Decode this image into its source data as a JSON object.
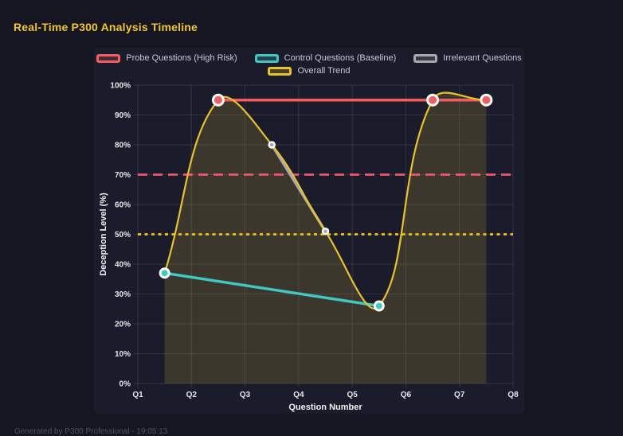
{
  "window": {
    "title": "Real-Time P300 Analysis Timeline",
    "footer": "Generated by P300 Professional - 19:05:13"
  },
  "colors": {
    "page_bg": "#151622",
    "card_bg": "#1b1c2b",
    "title": "#f1c72d",
    "grid": "rgba(255,255,255,0.10)",
    "tick_text": "#e6e6ea",
    "axis_title_text": "#f0f0f4",
    "legend_text": "#c6c8d0",
    "point_border": "#ffffff"
  },
  "chart_data": {
    "type": "line",
    "title": "Real-Time P300 Analysis Timeline",
    "xlabel": "Question Number",
    "ylabel": "Deception Level (%)",
    "x_ticks": [
      "Q1",
      "Q2",
      "Q3",
      "Q4",
      "Q5",
      "Q6",
      "Q7",
      "Q8"
    ],
    "x_range": [
      1,
      8
    ],
    "ylim": [
      0,
      100
    ],
    "y_tick_step": 10,
    "y_tick_suffix": "%",
    "grid": true,
    "legend_position": "top",
    "series": [
      {
        "name": "Probe Questions (High Risk)",
        "color": "#f25e5e",
        "shape": "straight",
        "line_width": 3.5,
        "point_radius": 6.5,
        "point_border_width": 3,
        "points": [
          [
            2.5,
            95
          ],
          [
            6.5,
            95
          ],
          [
            7.5,
            95
          ]
        ]
      },
      {
        "name": "Control Questions (Baseline)",
        "color": "#3ec9c2",
        "shape": "straight",
        "line_width": 3.5,
        "point_radius": 5.5,
        "point_border_width": 3,
        "points": [
          [
            1.5,
            37
          ],
          [
            5.5,
            26
          ]
        ]
      },
      {
        "name": "Irrelevant Questions",
        "color": "#a8a8ad",
        "shape": "straight",
        "line_width": 3.5,
        "point_radius": 3.5,
        "point_border_width": 2.5,
        "points": [
          [
            3.5,
            80
          ],
          [
            4.5,
            51
          ]
        ]
      },
      {
        "name": "Overall Trend",
        "color": "#e9c227",
        "shape": "spline",
        "tension": 0.4,
        "fill": true,
        "fill_color": "rgba(235,200,50,0.16)",
        "line_width": 2.2,
        "point_radius": 0,
        "point_border_width": 0,
        "points": [
          [
            1.5,
            37
          ],
          [
            2.5,
            95
          ],
          [
            3.5,
            80
          ],
          [
            4.5,
            51
          ],
          [
            5.5,
            26
          ],
          [
            6.5,
            95
          ],
          [
            7.5,
            95
          ]
        ]
      }
    ],
    "thresholds": [
      {
        "value": 70,
        "color": "#f0566e",
        "dash": "12 7",
        "width": 2.8
      },
      {
        "value": 50,
        "color": "#f0c419",
        "dash": "4 4.5",
        "width": 2.8
      }
    ]
  }
}
